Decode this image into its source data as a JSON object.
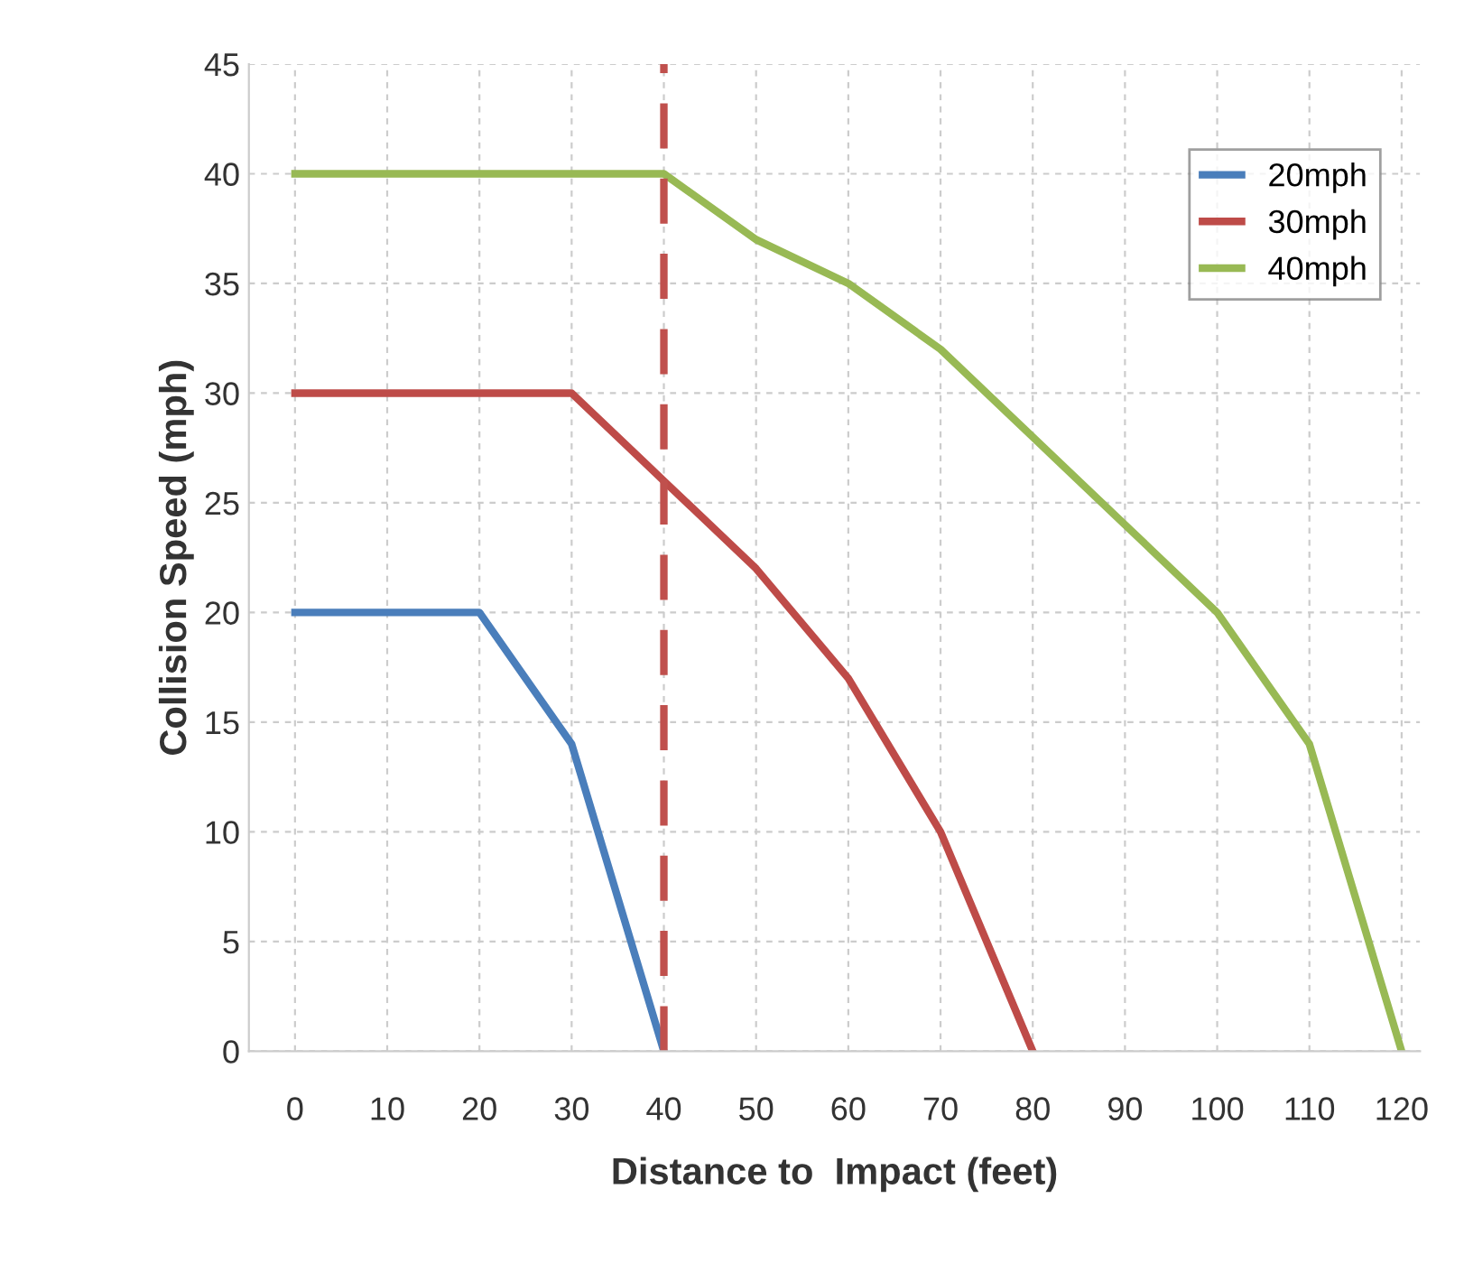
{
  "chart_data": {
    "type": "line",
    "xlabel": "Distance to  Impact (feet)",
    "ylabel": "Collision Speed (mph)",
    "xlim": [
      -5,
      122
    ],
    "xticks": [
      0,
      10,
      20,
      30,
      40,
      50,
      60,
      70,
      80,
      90,
      100,
      110,
      120
    ],
    "ylim": [
      0,
      45
    ],
    "yticks": [
      0,
      5,
      10,
      15,
      20,
      25,
      30,
      35,
      40,
      45
    ],
    "grid": true,
    "legend": "top right",
    "marker": "none",
    "line_style": "solid",
    "series": [
      {
        "name": "20mph",
        "color": "#4a7ebb",
        "x": [
          0,
          20,
          30,
          40
        ],
        "values": [
          20,
          20,
          14,
          0
        ]
      },
      {
        "name": "30mph",
        "color": "#be4b48",
        "x": [
          0,
          30,
          40,
          50,
          60,
          70,
          80
        ],
        "values": [
          30,
          30,
          26,
          22,
          17,
          10,
          0
        ]
      },
      {
        "name": "40mph",
        "color": "#98b954",
        "x": [
          0,
          40,
          50,
          60,
          70,
          80,
          90,
          100,
          110,
          120
        ],
        "values": [
          40,
          40,
          37,
          35,
          32,
          28,
          24,
          20,
          14,
          0
        ]
      }
    ],
    "ref_lines": [
      {
        "axis": "x",
        "value": 40,
        "color": "#c0504d",
        "line_style": "dashed"
      }
    ]
  }
}
